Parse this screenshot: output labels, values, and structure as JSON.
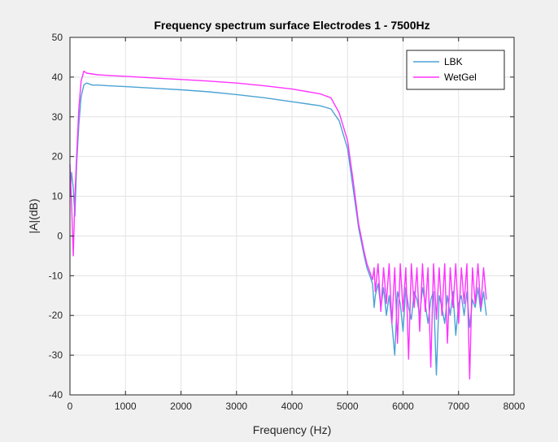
{
  "chart_data": {
    "type": "line",
    "title": "Frequency spectrum surface Electrodes 1 - 7500Hz",
    "xlabel": "Frequency (Hz)",
    "ylabel": "|A|(dB)",
    "xlim": [
      0,
      8000
    ],
    "ylim": [
      -40,
      50
    ],
    "xticks": [
      0,
      1000,
      2000,
      3000,
      4000,
      5000,
      6000,
      7000,
      8000
    ],
    "yticks": [
      -40,
      -30,
      -20,
      -10,
      0,
      10,
      20,
      30,
      40,
      50
    ],
    "grid": true,
    "legend_position": "top-right",
    "series": [
      {
        "name": "LBK",
        "color": "#4ba3d3",
        "x": [
          0,
          30,
          60,
          90,
          120,
          160,
          200,
          250,
          300,
          400,
          500,
          700,
          1000,
          1500,
          2000,
          2500,
          3000,
          3500,
          4000,
          4500,
          4700,
          4850,
          5000,
          5100,
          5200,
          5300,
          5350,
          5400,
          5450,
          5480,
          5500,
          5550,
          5600,
          5650,
          5700,
          5750,
          5800,
          5850,
          5900,
          5950,
          6000,
          6050,
          6100,
          6150,
          6200,
          6250,
          6300,
          6350,
          6400,
          6450,
          6500,
          6550,
          6600,
          6650,
          6700,
          6750,
          6800,
          6850,
          6900,
          6950,
          7000,
          7050,
          7100,
          7150,
          7200,
          7250,
          7300,
          7350,
          7400,
          7450,
          7500
        ],
        "y": [
          10,
          16,
          12,
          5,
          18,
          28,
          35,
          38,
          38.5,
          38,
          38,
          37.8,
          37.6,
          37.2,
          36.8,
          36.3,
          35.6,
          34.8,
          33.8,
          32.8,
          32,
          29,
          22,
          12,
          2,
          -5,
          -8,
          -10,
          -12,
          -18,
          -15,
          -12,
          -18,
          -13,
          -20,
          -15,
          -22,
          -30,
          -14,
          -17,
          -24,
          -13,
          -18,
          -21,
          -14,
          -16,
          -20,
          -13,
          -17,
          -22,
          -16,
          -14,
          -35,
          -15,
          -18,
          -22,
          -15,
          -20,
          -14,
          -25,
          -17,
          -15,
          -20,
          -14,
          -23,
          -16,
          -18,
          -13,
          -19,
          -14,
          -20
        ]
      },
      {
        "name": "WetGel",
        "color": "#ff33ff",
        "x": [
          0,
          30,
          60,
          90,
          120,
          160,
          200,
          250,
          300,
          400,
          500,
          700,
          1000,
          1500,
          2000,
          2500,
          3000,
          3500,
          4000,
          4500,
          4700,
          4850,
          5000,
          5100,
          5200,
          5300,
          5350,
          5400,
          5450,
          5480,
          5500,
          5550,
          5600,
          5650,
          5700,
          5750,
          5800,
          5850,
          5900,
          5950,
          6000,
          6050,
          6100,
          6150,
          6200,
          6250,
          6300,
          6350,
          6400,
          6450,
          6500,
          6550,
          6600,
          6650,
          6700,
          6750,
          6800,
          6850,
          6900,
          6950,
          7000,
          7050,
          7100,
          7150,
          7200,
          7250,
          7300,
          7350,
          7400,
          7450,
          7500
        ],
        "y": [
          18,
          8,
          -5,
          10,
          20,
          32,
          39,
          41.5,
          41,
          40.8,
          40.6,
          40.4,
          40.2,
          39.8,
          39.4,
          39,
          38.5,
          37.8,
          37,
          35.8,
          34.8,
          31,
          24,
          14,
          3,
          -4,
          -7,
          -9,
          -11,
          -8,
          -14,
          -7,
          -19,
          -8,
          -17,
          -7,
          -22,
          -8,
          -27,
          -7,
          -19,
          -8,
          -31,
          -7,
          -18,
          -8,
          -24,
          -7,
          -19,
          -8,
          -33,
          -7,
          -21,
          -8,
          -20,
          -7,
          -27,
          -8,
          -18,
          -7,
          -22,
          -8,
          -17,
          -7,
          -36,
          -8,
          -17,
          -7,
          -18,
          -8,
          -16
        ]
      }
    ]
  }
}
